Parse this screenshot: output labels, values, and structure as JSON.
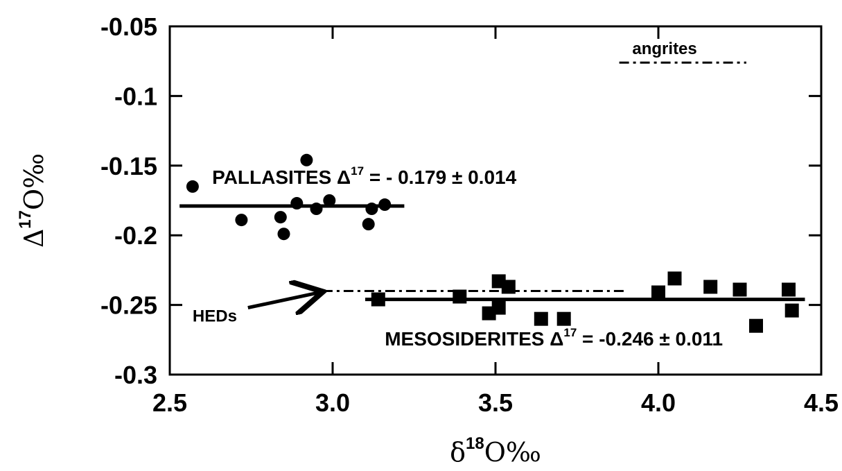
{
  "chart_data": {
    "type": "scatter",
    "title": "",
    "xlabel": {
      "prefix": "δ",
      "sup": "18",
      "suffix": "O‰"
    },
    "ylabel": {
      "prefix": "Δ",
      "sup": "17",
      "suffix": "O‰"
    },
    "xlim": [
      2.5,
      4.5
    ],
    "ylim": [
      -0.3,
      -0.05
    ],
    "x_ticks": [
      2.5,
      3.0,
      3.5,
      4.0,
      4.5
    ],
    "x_tick_labels": [
      "2.5",
      "3.0",
      "3.5",
      "4.0",
      "4.5"
    ],
    "y_ticks": [
      -0.3,
      -0.25,
      -0.2,
      -0.15,
      -0.1,
      -0.05
    ],
    "y_tick_labels": [
      "-0.3",
      "-0.25",
      "-0.2",
      "-0.15",
      "-0.1",
      "-0.05"
    ],
    "grid": false,
    "series": [
      {
        "marker": "circle",
        "x": [
          2.57,
          2.72,
          2.84,
          2.85,
          2.89,
          2.92,
          2.95,
          2.99,
          3.11,
          3.12,
          3.16
        ],
        "y": [
          -0.165,
          -0.189,
          -0.187,
          -0.199,
          -0.177,
          -0.146,
          -0.181,
          -0.175,
          -0.192,
          -0.181,
          -0.178
        ]
      },
      {
        "marker": "square",
        "x": [
          3.14,
          3.39,
          3.48,
          3.51,
          3.51,
          3.54,
          3.64,
          3.71,
          4.0,
          4.05,
          4.16,
          4.25,
          4.3,
          4.4,
          4.41
        ],
        "y": [
          -0.246,
          -0.244,
          -0.256,
          -0.233,
          -0.252,
          -0.237,
          -0.26,
          -0.26,
          -0.241,
          -0.231,
          -0.237,
          -0.239,
          -0.265,
          -0.239,
          -0.254
        ]
      }
    ],
    "reference_lines": [
      {
        "style": "solid",
        "x": [
          2.53,
          3.22
        ],
        "y": -0.179
      },
      {
        "style": "solid",
        "x": [
          3.1,
          4.45
        ],
        "y": -0.246
      },
      {
        "style": "dashdot",
        "x": [
          2.97,
          3.9
        ],
        "y": -0.24
      },
      {
        "style": "dashdot",
        "x": [
          3.88,
          4.27
        ],
        "y": -0.076
      }
    ],
    "annotations": {
      "pallasites": {
        "before": "PALLASITES Δ",
        "sup": "17",
        "after": " = - 0.179 ± 0.014",
        "x": 2.63,
        "y": -0.163
      },
      "mesosiderites": {
        "before": "MESOSIDERITES Δ",
        "sup": "17",
        "after": " = -0.246 ± 0.011",
        "x": 3.16,
        "y": -0.279
      },
      "angrites": {
        "text": "angrites",
        "x": 3.92,
        "y": -0.07
      },
      "heds": {
        "text": "HEDs",
        "x": 2.57,
        "y": -0.262
      }
    },
    "arrow": {
      "from": [
        2.74,
        -0.252
      ],
      "to": [
        2.96,
        -0.241
      ]
    }
  }
}
